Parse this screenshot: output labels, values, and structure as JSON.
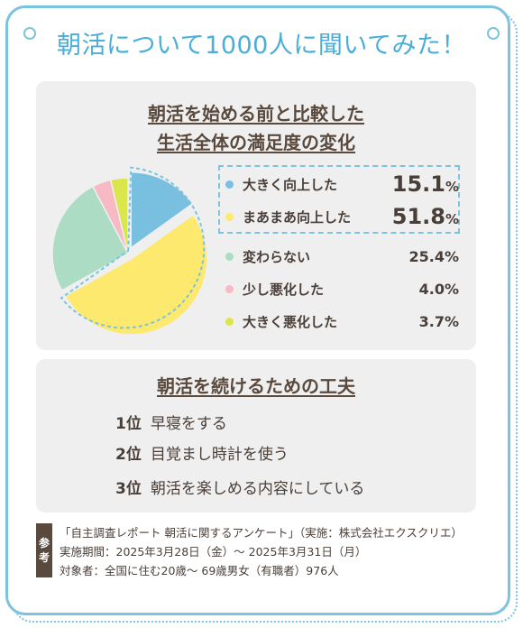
{
  "title": "朝活について1000人に聞いてみた！",
  "chart_data": {
    "type": "pie",
    "title_lines": [
      "朝活を始める前と比較した",
      "生活全体の満足度の変化"
    ],
    "unit": "%",
    "slices": [
      {
        "label": "大きく向上した",
        "value": 15.1,
        "value_text": "15.1",
        "color": "#79bfe0",
        "highlight": true
      },
      {
        "label": "まあまあ向上した",
        "value": 51.8,
        "value_text": "51.8",
        "color": "#fde96e",
        "highlight": true
      },
      {
        "label": "変わらない",
        "value": 25.4,
        "value_text": "25.4%",
        "color": "#acdcc4",
        "highlight": false
      },
      {
        "label": "少し悪化した",
        "value": 4.0,
        "value_text": "4.0%",
        "color": "#f7b9c3",
        "highlight": false
      },
      {
        "label": "大きく悪化した",
        "value": 3.7,
        "value_text": "3.7%",
        "color": "#dbe64c",
        "highlight": false
      }
    ]
  },
  "tips": {
    "title": "朝活を続けるための工夫",
    "items": [
      {
        "rank": "1位",
        "text": "早寝をする"
      },
      {
        "rank": "2位",
        "text": "目覚まし時計を使う"
      },
      {
        "rank": "3位",
        "text": "朝活を楽しめる内容にしている"
      }
    ]
  },
  "reference": {
    "tag": [
      "参",
      "考"
    ],
    "lines": [
      "「自主調査レポート 朝活に関するアンケート」（実施：株式会社エクスクリエ）",
      "実施期間：2025年3月28日（金）～ 2025年3月31日（月）",
      "対象者：全国に住む20歳～ 69歳男女（有職者）976人"
    ]
  }
}
